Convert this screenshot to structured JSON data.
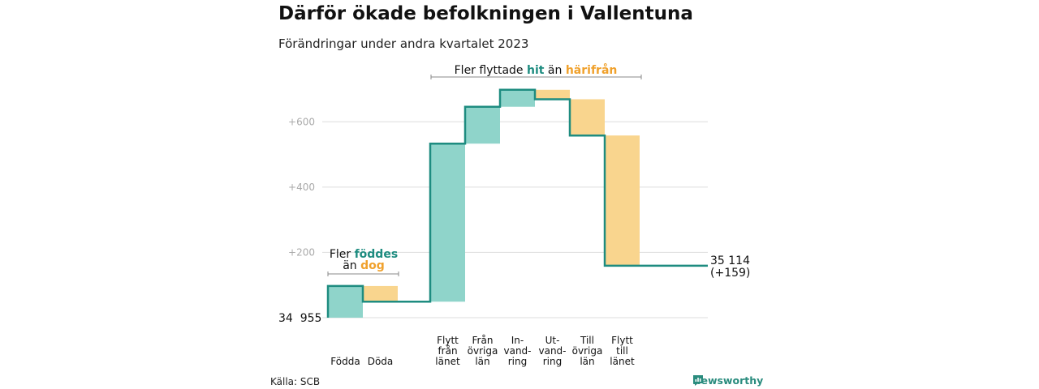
{
  "title": "Därför ökade befolkningen i Vallentuna",
  "subtitle": "Förändringar under andra kvartalet 2023",
  "source": "Källa: SCB",
  "brand": "Newsworthy",
  "colors": {
    "increase": "#8fd4ca",
    "decrease": "#f9d58e",
    "line": "#1e8c80",
    "grid": "#dddddd",
    "tick": "#aaaaaa",
    "teal_text": "#1e8c80",
    "orange_text": "#f0a12c"
  },
  "annotations": {
    "births": {
      "line1_prefix": "Fler ",
      "line1_highlight": "föddes",
      "line2_prefix": "än ",
      "line2_highlight": "dog"
    },
    "migration": {
      "prefix": "Fler flyttade ",
      "highlight1": "hit",
      "middle": " än ",
      "highlight2": "härifrån"
    }
  },
  "chart_data": {
    "type": "waterfall",
    "start_label": "34  955",
    "start_value": 34955,
    "end_label": "35 114",
    "end_change_label": "(+159)",
    "end_value": 35114,
    "y_ticks": [
      "+200",
      "+400",
      "+600"
    ],
    "y_tick_values": [
      200,
      400,
      600
    ],
    "ylim": [
      -5,
      720
    ],
    "grid": true,
    "steps": [
      {
        "label": [
          "Födda"
        ],
        "change": 97
      },
      {
        "label": [
          "Döda"
        ],
        "change": -48
      },
      {
        "label": [
          "Flytt",
          "från",
          "länet"
        ],
        "change": 484
      },
      {
        "label": [
          "Från",
          "övriga",
          "län"
        ],
        "change": 113
      },
      {
        "label": [
          "In-",
          "vand-",
          "ring"
        ],
        "change": 52
      },
      {
        "label": [
          "Ut-",
          "vand-",
          "ring"
        ],
        "change": -29
      },
      {
        "label": [
          "Till",
          "övriga",
          "län"
        ],
        "change": -111
      },
      {
        "label": [
          "Flytt",
          "till",
          "länet"
        ],
        "change": -399
      }
    ]
  }
}
